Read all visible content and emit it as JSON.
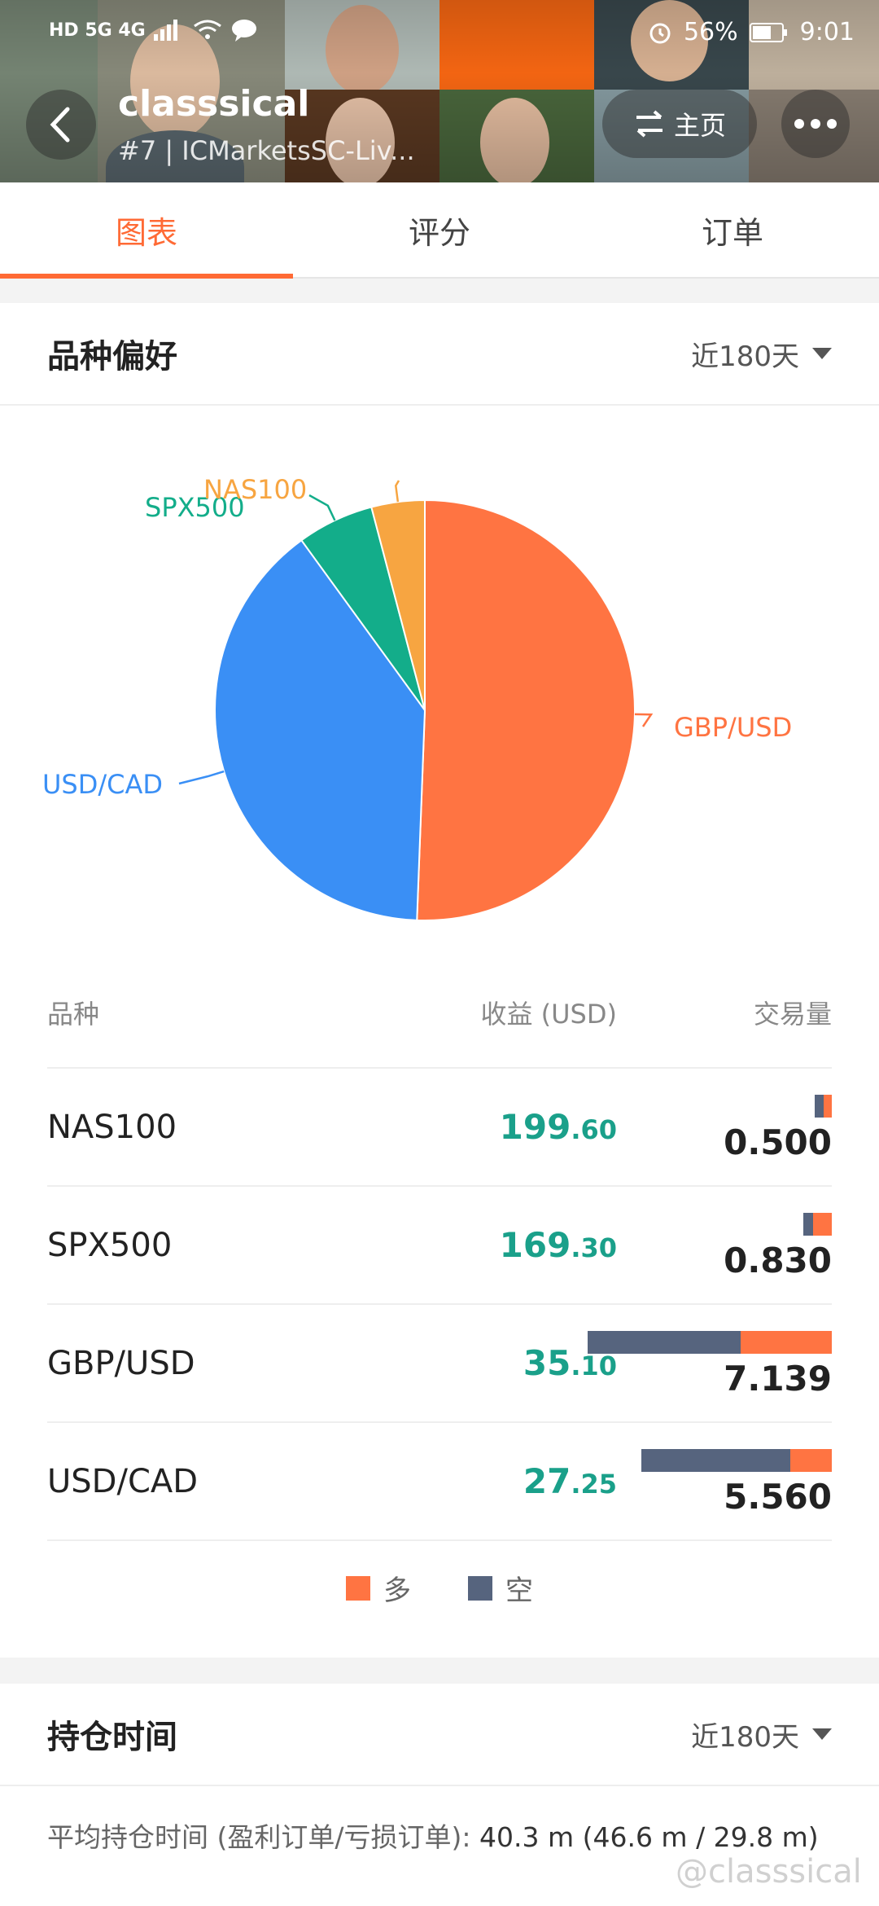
{
  "status_bar": {
    "network_left": "HD 5G 4G",
    "battery": "56%",
    "time": "9:01"
  },
  "header": {
    "back_icon": "chevron-left-icon",
    "title": "classsical",
    "subtitle": "#7 | ICMarketsSC-Liv...",
    "home_label": "主页",
    "home_icon": "swap-arrows-icon",
    "more_icon": "more-dots-icon"
  },
  "tabs": [
    {
      "label": "图表",
      "active": true
    },
    {
      "label": "评分",
      "active": false
    },
    {
      "label": "订单",
      "active": false
    }
  ],
  "preference": {
    "title": "品种偏好",
    "period": "近180天"
  },
  "chart_data": {
    "type": "pie",
    "slices": [
      {
        "label": "GBP/USD",
        "value": 50.6,
        "color": "#ff7442"
      },
      {
        "label": "USD/CAD",
        "value": 39.4,
        "color": "#3a8ff5"
      },
      {
        "label": "SPX500",
        "value": 5.9,
        "color": "#13ad8a"
      },
      {
        "label": "NAS100",
        "value": 4.1,
        "color": "#f7a541"
      }
    ]
  },
  "table": {
    "headers": [
      "品种",
      "收益 (USD)",
      "交易量"
    ],
    "rows": [
      {
        "symbol": "NAS100",
        "profit_int": "199",
        "profit_dec": ".60",
        "volume": "0.500",
        "long_frac": 0.5,
        "short_frac": 0.5,
        "bar_scale": 0.07
      },
      {
        "symbol": "SPX500",
        "profit_int": "169",
        "profit_dec": ".30",
        "volume": "0.830",
        "long_frac": 0.65,
        "short_frac": 0.35,
        "bar_scale": 0.116
      },
      {
        "symbol": "GBP/USD",
        "profit_int": "35",
        "profit_dec": ".10",
        "volume": "7.139",
        "long_frac": 0.375,
        "short_frac": 0.625,
        "bar_scale": 1.0
      },
      {
        "symbol": "USD/CAD",
        "profit_int": "27",
        "profit_dec": ".25",
        "volume": "5.560",
        "long_frac": 0.22,
        "short_frac": 0.78,
        "bar_scale": 0.779
      }
    ]
  },
  "legend": {
    "long_label": "多",
    "long_color": "#ff7442",
    "short_label": "空",
    "short_color": "#56647e"
  },
  "holding": {
    "title": "持仓时间",
    "period": "近180天",
    "avg_label": "平均持仓时间 (盈利订单/亏损订单):",
    "avg_value": "40.3 m (46.6 m / 29.8 m)"
  },
  "watermark": "@classsical"
}
